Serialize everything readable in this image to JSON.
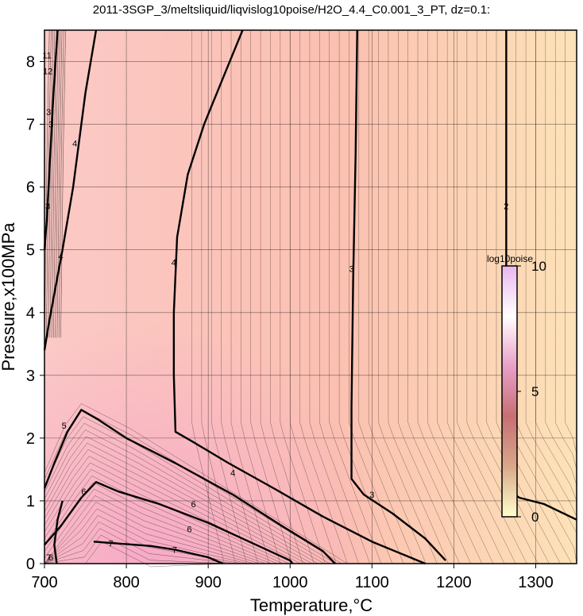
{
  "chart_data": {
    "type": "contour",
    "title": "2011-3SGP_3/meltsliquid/liqvislog10poise/H2O_4.4_C0.001_3_PT, dz=0.1:",
    "xlabel": "Temperature,°C",
    "ylabel": "Pressure,x100MPa",
    "xlim": [
      700,
      1350
    ],
    "ylim": [
      0,
      8.5
    ],
    "x_ticks": [
      700,
      800,
      900,
      1000,
      1100,
      1200,
      1300
    ],
    "y_ticks": [
      0,
      1,
      2,
      3,
      4,
      5,
      6,
      7,
      8
    ],
    "grid": true,
    "colorbar": {
      "label": "log10poise",
      "ticks": [
        0,
        5,
        10
      ],
      "range": [
        0,
        10
      ],
      "placement": "right-middle",
      "colors": [
        "#ffffcc",
        "#d9a88a",
        "#c76f73",
        "#e9a0c8",
        "#ffffff",
        "#e8b6ef"
      ]
    },
    "background_gradient": {
      "left_color": "#fbc9c6",
      "mid_color": "#fbc0b1",
      "right_color": "#fde2b8",
      "bottom_left_color": "#f6a8c8"
    },
    "major_contours": [
      {
        "level": 2,
        "label": "2",
        "points": [
          [
            1264,
            8.5
          ],
          [
            1264,
            6.0
          ],
          [
            1264,
            3.0
          ],
          [
            1264,
            1.2
          ],
          [
            1280,
            1.05
          ],
          [
            1310,
            0.95
          ],
          [
            1350,
            0.7
          ]
        ]
      },
      {
        "level": 3,
        "label": "3",
        "points": [
          [
            1082,
            8.5
          ],
          [
            1080,
            6.5
          ],
          [
            1077,
            4.5
          ],
          [
            1075,
            2.5
          ],
          [
            1075,
            1.35
          ],
          [
            1090,
            1.1
          ],
          [
            1125,
            0.8
          ],
          [
            1165,
            0.4
          ],
          [
            1190,
            0.05
          ]
        ]
      },
      {
        "level": 4,
        "label": "4",
        "points": [
          [
            942,
            8.5
          ],
          [
            920,
            7.8
          ],
          [
            895,
            7.0
          ],
          [
            875,
            6.2
          ],
          [
            862,
            5.2
          ],
          [
            858,
            4.0
          ],
          [
            858,
            3.0
          ],
          [
            860,
            2.1
          ],
          [
            880,
            1.95
          ],
          [
            925,
            1.6
          ],
          [
            980,
            1.2
          ],
          [
            1040,
            0.75
          ],
          [
            1100,
            0.35
          ],
          [
            1165,
            0.0
          ]
        ]
      },
      {
        "level": 4,
        "label": "4",
        "points": [
          [
            763,
            8.5
          ],
          [
            750,
            7.5
          ],
          [
            735,
            6.0
          ],
          [
            722,
            5.0
          ],
          [
            712,
            4.3
          ],
          [
            705,
            3.8
          ],
          [
            700,
            3.4
          ]
        ]
      },
      {
        "level": 3,
        "label": "3",
        "points": [
          [
            716,
            8.5
          ],
          [
            711,
            7.5
          ],
          [
            707,
            6.5
          ],
          [
            703,
            5.5
          ],
          [
            700,
            5.0
          ]
        ]
      },
      {
        "level": 5,
        "label": "5",
        "points": [
          [
            700,
            1.2
          ],
          [
            712,
            1.6
          ],
          [
            728,
            2.1
          ],
          [
            745,
            2.45
          ],
          [
            765,
            2.3
          ],
          [
            800,
            2.0
          ],
          [
            860,
            1.6
          ],
          [
            930,
            1.1
          ],
          [
            990,
            0.6
          ],
          [
            1040,
            0.2
          ],
          [
            1055,
            0.0
          ]
        ]
      },
      {
        "level": 6,
        "label": "6",
        "points": [
          [
            700,
            0.3
          ],
          [
            720,
            0.6
          ],
          [
            745,
            1.05
          ],
          [
            763,
            1.3
          ],
          [
            790,
            1.15
          ],
          [
            840,
            0.95
          ],
          [
            900,
            0.65
          ],
          [
            950,
            0.35
          ],
          [
            1000,
            0.05
          ],
          [
            1003,
            0.0
          ]
        ]
      },
      {
        "level": 7,
        "label": "7",
        "points": [
          [
            760,
            0.35
          ],
          [
            790,
            0.32
          ],
          [
            830,
            0.28
          ],
          [
            860,
            0.22
          ],
          [
            900,
            0.1
          ],
          [
            918,
            0.0
          ]
        ]
      },
      {
        "level": 8,
        "label": "",
        "points": [
          [
            715,
            0.0
          ],
          [
            712,
            0.3
          ],
          [
            716,
            0.7
          ],
          [
            722,
            1.0
          ]
        ]
      }
    ],
    "contour_labels": [
      {
        "text": "3",
        "x": 1075,
        "y": 4.7
      },
      {
        "text": "2",
        "x": 1264,
        "y": 5.7
      },
      {
        "text": "4",
        "x": 858,
        "y": 4.8
      },
      {
        "text": "4",
        "x": 930,
        "y": 1.45
      },
      {
        "text": "3",
        "x": 1100,
        "y": 1.1
      },
      {
        "text": "4",
        "x": 720,
        "y": 4.9
      },
      {
        "text": "4",
        "x": 737,
        "y": 6.7
      },
      {
        "text": "3",
        "x": 708,
        "y": 7.0
      },
      {
        "text": "3",
        "x": 704,
        "y": 5.7
      },
      {
        "text": "3",
        "x": 705,
        "y": 7.2
      },
      {
        "text": "5",
        "x": 724,
        "y": 2.2
      },
      {
        "text": "6",
        "x": 748,
        "y": 1.15
      },
      {
        "text": "6",
        "x": 882,
        "y": 0.95
      },
      {
        "text": "6",
        "x": 877,
        "y": 0.55
      },
      {
        "text": "7",
        "x": 781,
        "y": 0.32
      },
      {
        "text": "7",
        "x": 859,
        "y": 0.22
      },
      {
        "text": "7",
        "x": 705,
        "y": 0.1
      },
      {
        "text": "11",
        "x": 703,
        "y": 8.1
      },
      {
        "text": "12",
        "x": 704,
        "y": 7.85
      },
      {
        "text": "6",
        "x": 708,
        "y": 0.1
      }
    ]
  }
}
